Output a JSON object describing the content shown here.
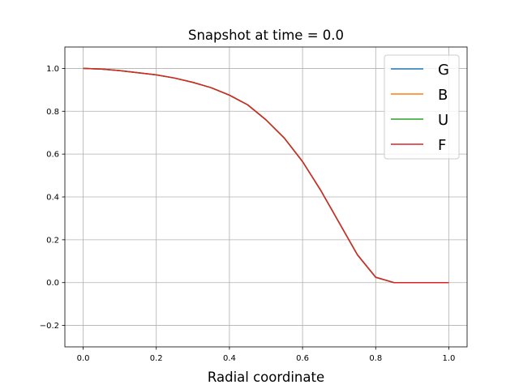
{
  "chart_data": {
    "type": "line",
    "title": "Snapshot at time = 0.0",
    "xlabel": "Radial coordinate",
    "ylabel": "",
    "xlim": [
      -0.05,
      1.05
    ],
    "ylim": [
      -0.3,
      1.1
    ],
    "xticks": [
      0.0,
      0.2,
      0.4,
      0.6,
      0.8,
      1.0
    ],
    "xtick_labels": [
      "0.0",
      "0.2",
      "0.4",
      "0.6",
      "0.8",
      "1.0"
    ],
    "yticks": [
      -0.2,
      0.0,
      0.2,
      0.4,
      0.6,
      0.8,
      1.0
    ],
    "ytick_labels": [
      "−0.2",
      "0.0",
      "0.2",
      "0.4",
      "0.6",
      "0.8",
      "1.0"
    ],
    "grid": true,
    "legend_position": "top-right",
    "x": [
      0.0,
      0.05,
      0.1,
      0.15,
      0.2,
      0.25,
      0.3,
      0.35,
      0.4,
      0.45,
      0.5,
      0.55,
      0.6,
      0.65,
      0.7,
      0.75,
      0.8,
      0.85,
      0.9,
      0.95,
      1.0
    ],
    "series": [
      {
        "name": "G",
        "color": "#1f77b4",
        "values": [
          1.0,
          0.997,
          0.99,
          0.98,
          0.97,
          0.955,
          0.935,
          0.91,
          0.875,
          0.83,
          0.76,
          0.675,
          0.565,
          0.43,
          0.28,
          0.13,
          0.025,
          0.0,
          0.0,
          0.0,
          0.0
        ]
      },
      {
        "name": "B",
        "color": "#ff7f0e",
        "values": [
          1.0,
          0.997,
          0.99,
          0.98,
          0.97,
          0.955,
          0.935,
          0.91,
          0.875,
          0.83,
          0.76,
          0.675,
          0.565,
          0.43,
          0.28,
          0.13,
          0.025,
          0.0,
          0.0,
          0.0,
          0.0
        ]
      },
      {
        "name": "U",
        "color": "#2ca02c",
        "values": [
          1.0,
          0.997,
          0.99,
          0.98,
          0.97,
          0.955,
          0.935,
          0.91,
          0.875,
          0.83,
          0.76,
          0.675,
          0.565,
          0.43,
          0.28,
          0.13,
          0.025,
          0.0,
          0.0,
          0.0,
          0.0
        ]
      },
      {
        "name": "F",
        "color": "#d62728",
        "values": [
          1.0,
          0.997,
          0.99,
          0.98,
          0.97,
          0.955,
          0.935,
          0.91,
          0.875,
          0.83,
          0.76,
          0.675,
          0.565,
          0.43,
          0.28,
          0.13,
          0.025,
          0.0,
          0.0,
          0.0,
          0.0
        ]
      }
    ]
  }
}
